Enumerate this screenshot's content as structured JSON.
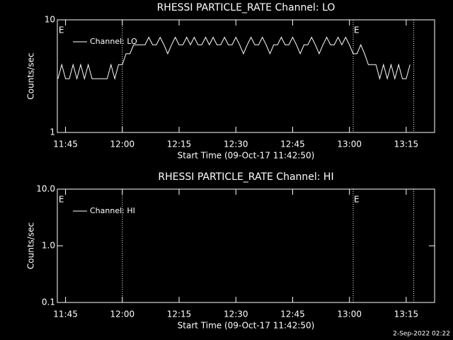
{
  "chart_data": [
    {
      "type": "line",
      "title": "RHESSI PARTICLE_RATE Channel: LO",
      "xlabel": "Start Time (09-Oct-17 11:42:50)",
      "ylabel": "Counts/sec",
      "log_y": true,
      "color": "#ffffff",
      "xlim": [
        "11:42:50",
        "13:22:30"
      ],
      "xticks": [
        "11:45",
        "12:00",
        "12:15",
        "12:30",
        "12:45",
        "13:00",
        "13:15"
      ],
      "ylim": [
        1,
        10
      ],
      "yticks": [
        1,
        10
      ],
      "legend": "upper left",
      "annotations": [
        {
          "text": "E",
          "x": "11:43"
        },
        {
          "text": "E",
          "x": "13:01"
        }
      ],
      "vlines": [
        "12:00",
        "13:01",
        "13:17"
      ],
      "x": [
        "11:43",
        "11:44",
        "11:45",
        "11:46",
        "11:47",
        "11:48",
        "11:49",
        "11:50",
        "11:51",
        "11:52",
        "11:53",
        "11:54",
        "11:55",
        "11:56",
        "11:57",
        "11:58",
        "11:59",
        "12:00",
        "12:01",
        "12:02",
        "12:03",
        "12:04",
        "12:05",
        "12:06",
        "12:07",
        "12:08",
        "12:09",
        "12:10",
        "12:11",
        "12:12",
        "12:13",
        "12:14",
        "12:15",
        "12:16",
        "12:17",
        "12:18",
        "12:19",
        "12:20",
        "12:21",
        "12:22",
        "12:23",
        "12:24",
        "12:25",
        "12:26",
        "12:27",
        "12:28",
        "12:29",
        "12:30",
        "12:31",
        "12:32",
        "12:33",
        "12:34",
        "12:35",
        "12:36",
        "12:37",
        "12:38",
        "12:39",
        "12:40",
        "12:41",
        "12:42",
        "12:43",
        "12:44",
        "12:45",
        "12:46",
        "12:47",
        "12:48",
        "12:49",
        "12:50",
        "12:51",
        "12:52",
        "12:53",
        "12:54",
        "12:55",
        "12:56",
        "12:57",
        "12:58",
        "12:59",
        "13:00",
        "13:01",
        "13:02",
        "13:03",
        "13:04",
        "13:05",
        "13:06",
        "13:07",
        "13:08",
        "13:09",
        "13:10",
        "13:11",
        "13:12",
        "13:13",
        "13:14",
        "13:15",
        "13:16"
      ],
      "series": [
        {
          "name": "Channel: LO",
          "color": "#ffffff",
          "values": [
            3,
            4,
            3,
            3,
            4,
            3,
            4,
            3,
            4,
            3,
            3,
            3,
            3,
            3,
            4,
            3,
            4,
            4,
            5,
            5,
            6,
            6,
            6,
            6,
            7,
            6,
            6,
            7,
            6,
            5,
            6,
            7,
            6,
            6,
            7,
            6,
            7,
            6,
            6,
            7,
            6,
            7,
            6,
            6,
            7,
            6,
            6,
            7,
            6,
            5,
            6,
            7,
            6,
            6,
            7,
            6,
            5,
            6,
            6,
            7,
            6,
            6,
            7,
            6,
            5,
            6,
            6,
            7,
            6,
            5,
            6,
            7,
            6,
            6,
            7,
            6,
            7,
            6,
            5,
            5,
            6,
            5,
            4,
            4,
            4,
            3,
            4,
            3,
            4,
            3,
            4,
            3,
            3,
            4
          ]
        }
      ]
    },
    {
      "type": "line",
      "title": "RHESSI PARTICLE_RATE Channel: HI",
      "xlabel": "Start Time (09-Oct-17 11:42:50)",
      "ylabel": "Counts/sec",
      "log_y": true,
      "color": "#ffffff",
      "xlim": [
        "11:42:50",
        "13:22:30"
      ],
      "xticks": [
        "11:45",
        "12:00",
        "12:15",
        "12:30",
        "12:45",
        "13:00",
        "13:15"
      ],
      "ylim": [
        0.1,
        10
      ],
      "yticks": [
        {
          "value": 0.1,
          "label": "0.1"
        },
        {
          "value": 1,
          "label": "1.0"
        },
        {
          "value": 10,
          "label": "10.0"
        }
      ],
      "legend": "upper left",
      "annotations": [
        {
          "text": "E",
          "x": "11:43"
        },
        {
          "text": "E",
          "x": "13:01"
        }
      ],
      "vlines": [
        "12:00",
        "13:01",
        "13:17"
      ],
      "x": [],
      "series": [
        {
          "name": "Channel: HI",
          "color": "#ffffff",
          "values": []
        }
      ]
    }
  ],
  "footer": "2-Sep-2022 02:22"
}
